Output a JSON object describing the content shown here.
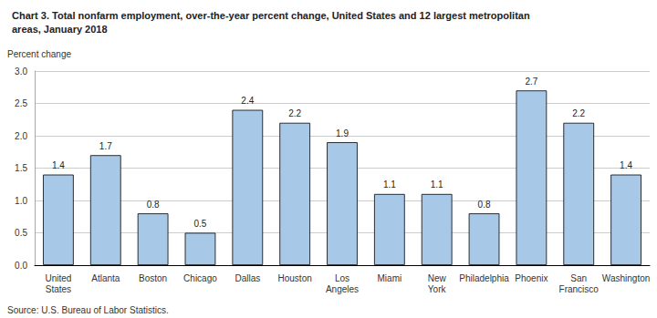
{
  "chart_data": {
    "type": "bar",
    "title": "Chart 3. Total nonfarm employment, over-the-year percent change, United States and 12 largest metropolitan\nareas, January 2018",
    "y_label": "Percent change",
    "annotations": [
      "Source: U.S. Bureau of Labor Statistics."
    ],
    "categories": [
      "United\nStates",
      "Atlanta",
      "Boston",
      "Chicago",
      "Dallas",
      "Houston",
      "Los\nAngeles",
      "Miami",
      "New\nYork",
      "Philadelphia",
      "Phoenix",
      "San\nFrancisco",
      "Washington"
    ],
    "values": [
      1.4,
      1.7,
      0.8,
      0.5,
      2.4,
      2.2,
      1.9,
      1.1,
      1.1,
      0.8,
      2.7,
      2.2,
      1.4
    ],
    "color": "#a8c8e8",
    "ylim": [
      0,
      3.0
    ],
    "yticks": [
      {
        "value": 0.0,
        "label": "0.0"
      },
      0.5,
      {
        "value": 1.0,
        "label": "1.0"
      },
      1.5,
      {
        "value": 2.0,
        "label": "2.0"
      },
      2.5,
      {
        "value": 3.0,
        "label": "3.0"
      }
    ],
    "grid": true,
    "data_labels": true
  }
}
